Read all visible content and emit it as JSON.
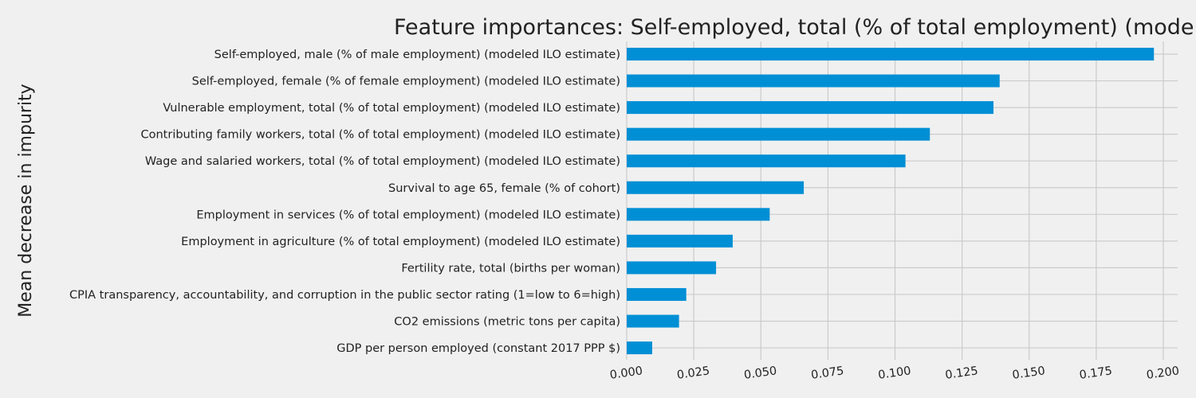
{
  "chart_data": {
    "type": "bar",
    "orientation": "horizontal",
    "title": "Feature importances: Self-employed, total (% of total employment) (modeled ILO estimate)",
    "ylabel": "Mean decrease in impurity",
    "xlabel": "",
    "categories": [
      "Self-employed, male (% of male employment) (modeled ILO estimate)",
      "Self-employed, female (% of female employment) (modeled ILO estimate)",
      "Vulnerable employment, total (% of total employment) (modeled ILO estimate)",
      "Contributing family workers, total (% of total employment) (modeled ILO estimate)",
      "Wage and salaried workers, total (% of total employment) (modeled ILO estimate)",
      "Survival to age 65, female (% of cohort)",
      "Employment in services (% of total employment) (modeled ILO estimate)",
      "Employment in agriculture (% of total employment) (modeled ILO estimate)",
      "Fertility rate, total (births per woman)",
      "CPIA transparency, accountability, and corruption in the public sector rating (1=low to 6=high)",
      "CO2 emissions (metric tons per capita)",
      "GDP per person employed (constant 2017 PPP $)"
    ],
    "values": [
      0.1965,
      0.139,
      0.1367,
      0.113,
      0.1039,
      0.066,
      0.0533,
      0.0395,
      0.0333,
      0.0222,
      0.0195,
      0.0095
    ],
    "xlim": [
      0,
      0.205
    ],
    "xticks": [
      "0.000",
      "0.025",
      "0.050",
      "0.075",
      "0.100",
      "0.125",
      "0.150",
      "0.175",
      "0.200"
    ],
    "grid": true,
    "bar_color": "#008fd5",
    "background_color": "#f0f0f0",
    "grid_color": "#cbcbcb",
    "text_color": "#222222"
  }
}
